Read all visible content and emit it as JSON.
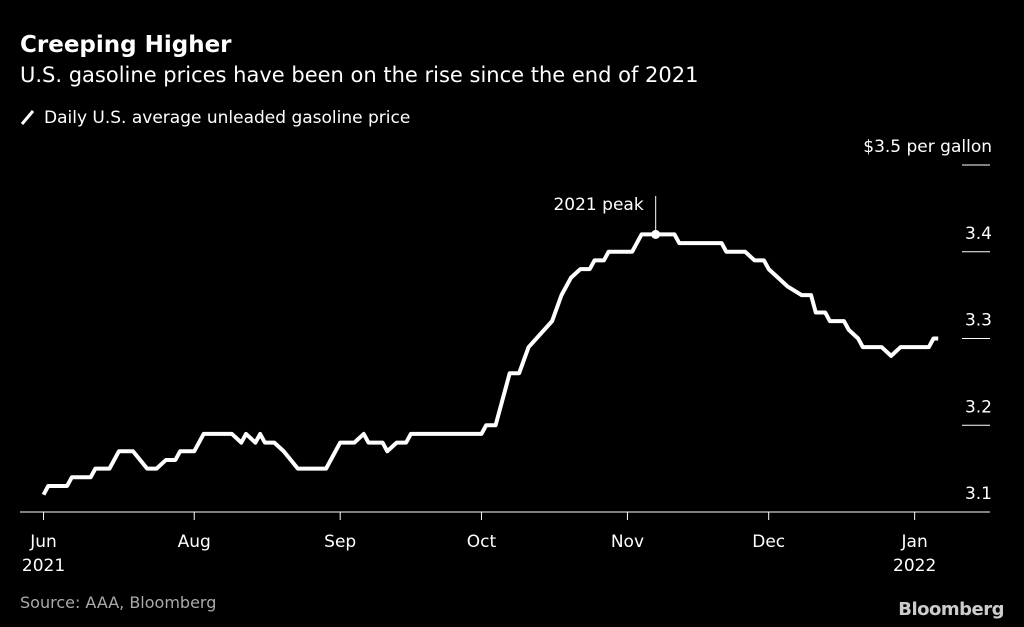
{
  "chart_data": {
    "type": "line",
    "title": "Creeping Higher",
    "subtitle": "U.S. gasoline prices have been on the rise since the end of 2021",
    "source": "Source: AAA, Bloomberg",
    "brand": "Bloomberg",
    "series": [
      {
        "name": "Daily U.S. average unleaded gasoline price",
        "color": "#ffffff",
        "x": [
          0,
          1,
          5,
          6,
          10,
          11,
          14,
          16,
          19,
          22,
          24,
          26,
          28,
          29,
          32,
          34,
          40,
          42,
          43,
          45,
          46,
          47,
          49,
          51,
          54,
          60,
          63,
          66,
          68,
          69,
          72,
          73,
          75,
          77,
          78,
          93,
          94,
          96,
          99,
          101,
          103,
          108,
          110,
          112,
          114,
          116,
          117,
          119,
          120,
          125,
          127,
          130,
          134,
          135,
          144,
          145,
          149,
          151,
          153,
          154,
          156,
          158,
          161,
          163,
          164,
          166,
          167,
          170,
          171,
          173,
          174,
          178,
          180,
          182,
          188,
          189,
          190
        ],
        "values": [
          3.12,
          3.13,
          3.13,
          3.14,
          3.14,
          3.15,
          3.15,
          3.17,
          3.17,
          3.15,
          3.15,
          3.16,
          3.16,
          3.17,
          3.17,
          3.19,
          3.19,
          3.18,
          3.19,
          3.18,
          3.19,
          3.18,
          3.18,
          3.17,
          3.15,
          3.15,
          3.18,
          3.18,
          3.19,
          3.18,
          3.18,
          3.17,
          3.18,
          3.18,
          3.19,
          3.19,
          3.2,
          3.2,
          3.26,
          3.26,
          3.29,
          3.32,
          3.35,
          3.37,
          3.38,
          3.38,
          3.39,
          3.39,
          3.4,
          3.4,
          3.42,
          3.42,
          3.42,
          3.41,
          3.41,
          3.4,
          3.4,
          3.39,
          3.39,
          3.38,
          3.37,
          3.36,
          3.35,
          3.35,
          3.33,
          3.33,
          3.32,
          3.32,
          3.31,
          3.3,
          3.29,
          3.29,
          3.28,
          3.29,
          3.29,
          3.3,
          3.3
        ]
      }
    ],
    "xlim": [
      -5,
      201
    ],
    "xticks": [
      {
        "value": 0,
        "label": "Jun"
      },
      {
        "value": 32,
        "label": "Aug"
      },
      {
        "value": 63,
        "label": "Sep"
      },
      {
        "value": 93,
        "label": "Oct"
      },
      {
        "value": 124,
        "label": "Nov"
      },
      {
        "value": 154,
        "label": "Dec"
      },
      {
        "value": 185,
        "label": "Jan"
      }
    ],
    "x_year_labels": [
      {
        "value": 0,
        "label": "2021"
      },
      {
        "value": 185,
        "label": "2022"
      }
    ],
    "ylim": [
      3.1,
      3.5
    ],
    "yticks": [
      3.1,
      3.2,
      3.3,
      3.4,
      {
        "value": 3.5,
        "label": "$3.5 per gallon"
      }
    ],
    "annotation": {
      "text": "2021 peak",
      "x": 130,
      "y": 3.42
    }
  }
}
